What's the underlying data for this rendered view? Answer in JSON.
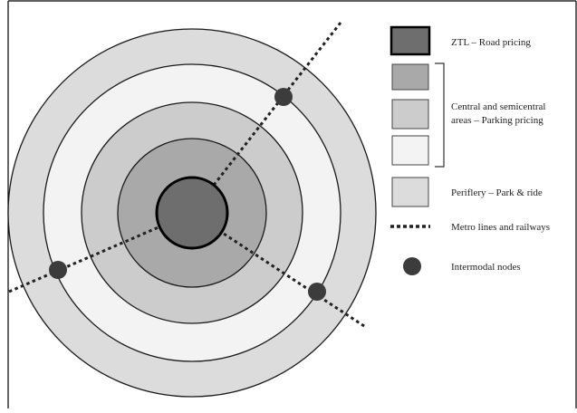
{
  "diagram": {
    "zones": [
      {
        "name": "ztl-center",
        "fill": "#6e6e6e"
      },
      {
        "name": "semicentral-dark",
        "fill": "#a9a9a9"
      },
      {
        "name": "semicentral-mid",
        "fill": "#cccccc"
      },
      {
        "name": "semicentral-light",
        "fill": "#f3f3f3"
      },
      {
        "name": "periphery",
        "fill": "#dcdcdc"
      }
    ],
    "legend": {
      "ztl": "ZTL – Road pricing",
      "parking_line1": "Central and semicentral",
      "parking_line2": "areas – Parking pricing",
      "periphery": "Periflery – Park & ride",
      "metro": "Metro lines and railways",
      "nodes": "Intermodal nodes"
    },
    "colors": {
      "stroke": "#1a1a1a",
      "node": "#3c3c3c",
      "rail": "#222222"
    }
  }
}
